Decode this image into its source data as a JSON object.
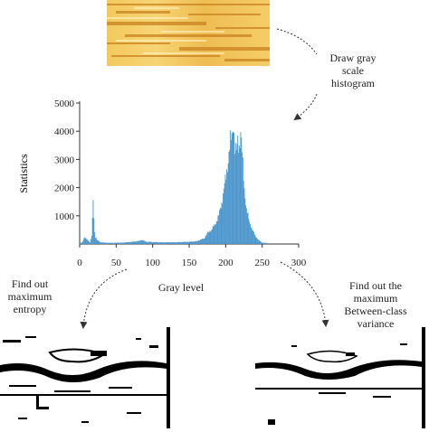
{
  "labels": {
    "draw": [
      "Draw gray",
      "scale",
      "histogram"
    ],
    "entropy": [
      "Find out",
      "maximum",
      "entropy"
    ],
    "between": [
      "Find out the",
      "maximum",
      "Between-class",
      "variance"
    ]
  },
  "colors": {
    "bars": "#4b96cc",
    "wood_light": "#f6cf6a",
    "wood_dark": "#c9821e",
    "binary_black": "#000000"
  },
  "chart_data": {
    "type": "bar",
    "ylabel": "Statistics",
    "xlabel": "Gray level",
    "xlim": [
      0,
      300
    ],
    "ylim": [
      0,
      5000
    ],
    "xticks": [
      "0",
      "50",
      "100",
      "150",
      "200",
      "250",
      "300"
    ],
    "yticks": [
      "1000",
      "2000",
      "3000",
      "4000",
      "5000"
    ],
    "x": [
      3,
      6,
      14,
      16,
      18,
      20,
      23,
      28,
      40,
      60,
      80,
      85,
      90,
      110,
      130,
      150,
      160,
      170,
      175,
      180,
      185,
      190,
      195,
      200,
      203,
      206,
      208,
      210,
      212,
      214,
      216,
      218,
      220,
      222,
      225,
      228,
      232,
      236,
      240,
      244,
      250
    ],
    "values": [
      50,
      250,
      50,
      300,
      1450,
      400,
      150,
      60,
      40,
      50,
      100,
      150,
      80,
      60,
      60,
      80,
      100,
      200,
      400,
      500,
      700,
      1000,
      1600,
      2400,
      3000,
      3600,
      3800,
      4400,
      3400,
      3200,
      3700,
      3500,
      3900,
      3200,
      2000,
      1200,
      800,
      500,
      300,
      150,
      40
    ]
  }
}
